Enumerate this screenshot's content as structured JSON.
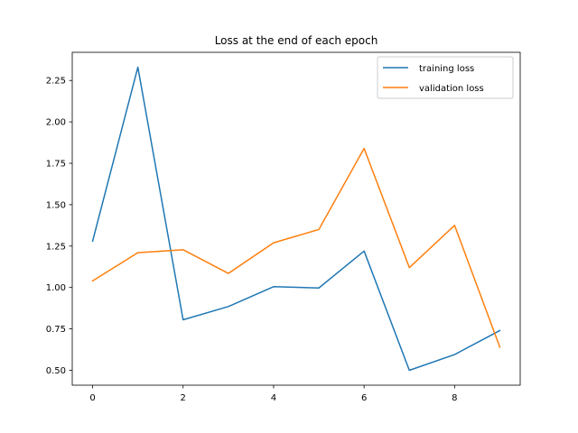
{
  "chart_data": {
    "type": "line",
    "title": "Loss at the end of each epoch",
    "xlabel": "",
    "ylabel": "",
    "x": [
      0,
      1,
      2,
      3,
      4,
      5,
      6,
      7,
      8,
      9
    ],
    "xlim": [
      -0.45,
      9.45
    ],
    "ylim": [
      0.41,
      2.42
    ],
    "xticks": [
      0,
      2,
      4,
      6,
      8
    ],
    "xtick_labels": [
      "0",
      "2",
      "4",
      "6",
      "8"
    ],
    "yticks": [
      0.5,
      0.75,
      1.0,
      1.25,
      1.5,
      1.75,
      2.0,
      2.25
    ],
    "ytick_labels": [
      "0.50",
      "0.75",
      "1.00",
      "1.25",
      "1.50",
      "1.75",
      "2.00",
      "2.25"
    ],
    "grid": false,
    "legend_position": "top-right",
    "series": [
      {
        "name": "training loss",
        "color": "#1f77b4",
        "values": [
          1.28,
          2.33,
          0.805,
          0.885,
          1.005,
          0.997,
          1.22,
          0.5,
          0.595,
          0.74
        ]
      },
      {
        "name": "validation loss",
        "color": "#ff7f0e",
        "values": [
          1.04,
          1.21,
          1.228,
          1.085,
          1.27,
          1.35,
          1.84,
          1.12,
          1.375,
          0.64
        ]
      }
    ]
  }
}
